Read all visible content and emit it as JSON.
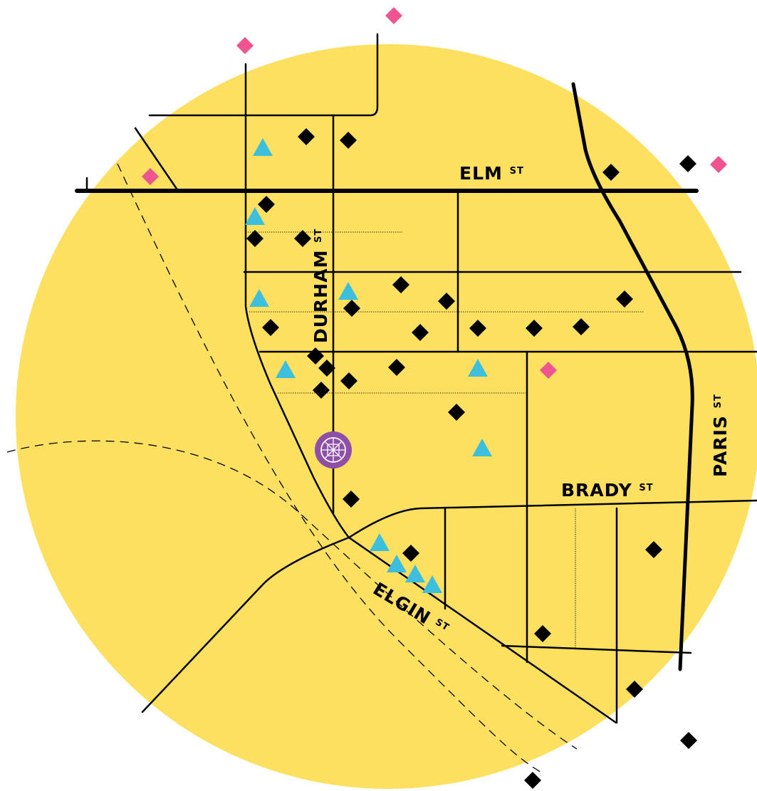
{
  "streets": [
    {
      "name": "ELM",
      "suffix": "ST"
    },
    {
      "name": "DURHAM",
      "suffix": "ST"
    },
    {
      "name": "BRADY",
      "suffix": "ST"
    },
    {
      "name": "PARIS",
      "suffix": "ST"
    },
    {
      "name": "ELGIN",
      "suffix": "ST"
    }
  ]
}
